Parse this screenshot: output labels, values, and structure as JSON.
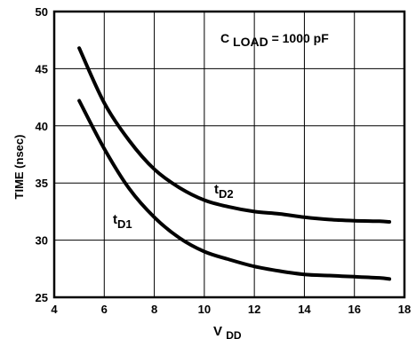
{
  "chart_data": {
    "type": "line",
    "title": "",
    "xlabel": {
      "main": "V",
      "sub": "DD"
    },
    "ylabel": "TIME (nsec)",
    "xlim": [
      4,
      18
    ],
    "ylim": [
      25,
      50
    ],
    "x_ticks": [
      "4",
      "6",
      "8",
      "10",
      "12",
      "14",
      "16",
      "18"
    ],
    "y_ticks": [
      "25",
      "30",
      "35",
      "40",
      "45",
      "50"
    ],
    "grid": true,
    "annotation": {
      "main": "C",
      "sub": "LOAD",
      "rest": "= 1000 pF"
    },
    "series": [
      {
        "name": "tD2",
        "label": {
          "main": "t",
          "sub": "D2"
        },
        "x": [
          5,
          6,
          7,
          8,
          9,
          10,
          11,
          12,
          13,
          14,
          15,
          16,
          17,
          17.4
        ],
        "y": [
          46.8,
          42.0,
          38.7,
          36.2,
          34.6,
          33.5,
          32.9,
          32.5,
          32.3,
          32.0,
          31.8,
          31.7,
          31.65,
          31.6
        ]
      },
      {
        "name": "tD1",
        "label": {
          "main": "t",
          "sub": "D1"
        },
        "x": [
          5,
          6,
          7,
          8,
          9,
          10,
          11,
          12,
          13,
          14,
          15,
          16,
          17,
          17.4
        ],
        "y": [
          42.2,
          38.0,
          34.5,
          32.0,
          30.2,
          29.0,
          28.3,
          27.7,
          27.3,
          27.0,
          26.9,
          26.8,
          26.7,
          26.6
        ]
      }
    ]
  }
}
